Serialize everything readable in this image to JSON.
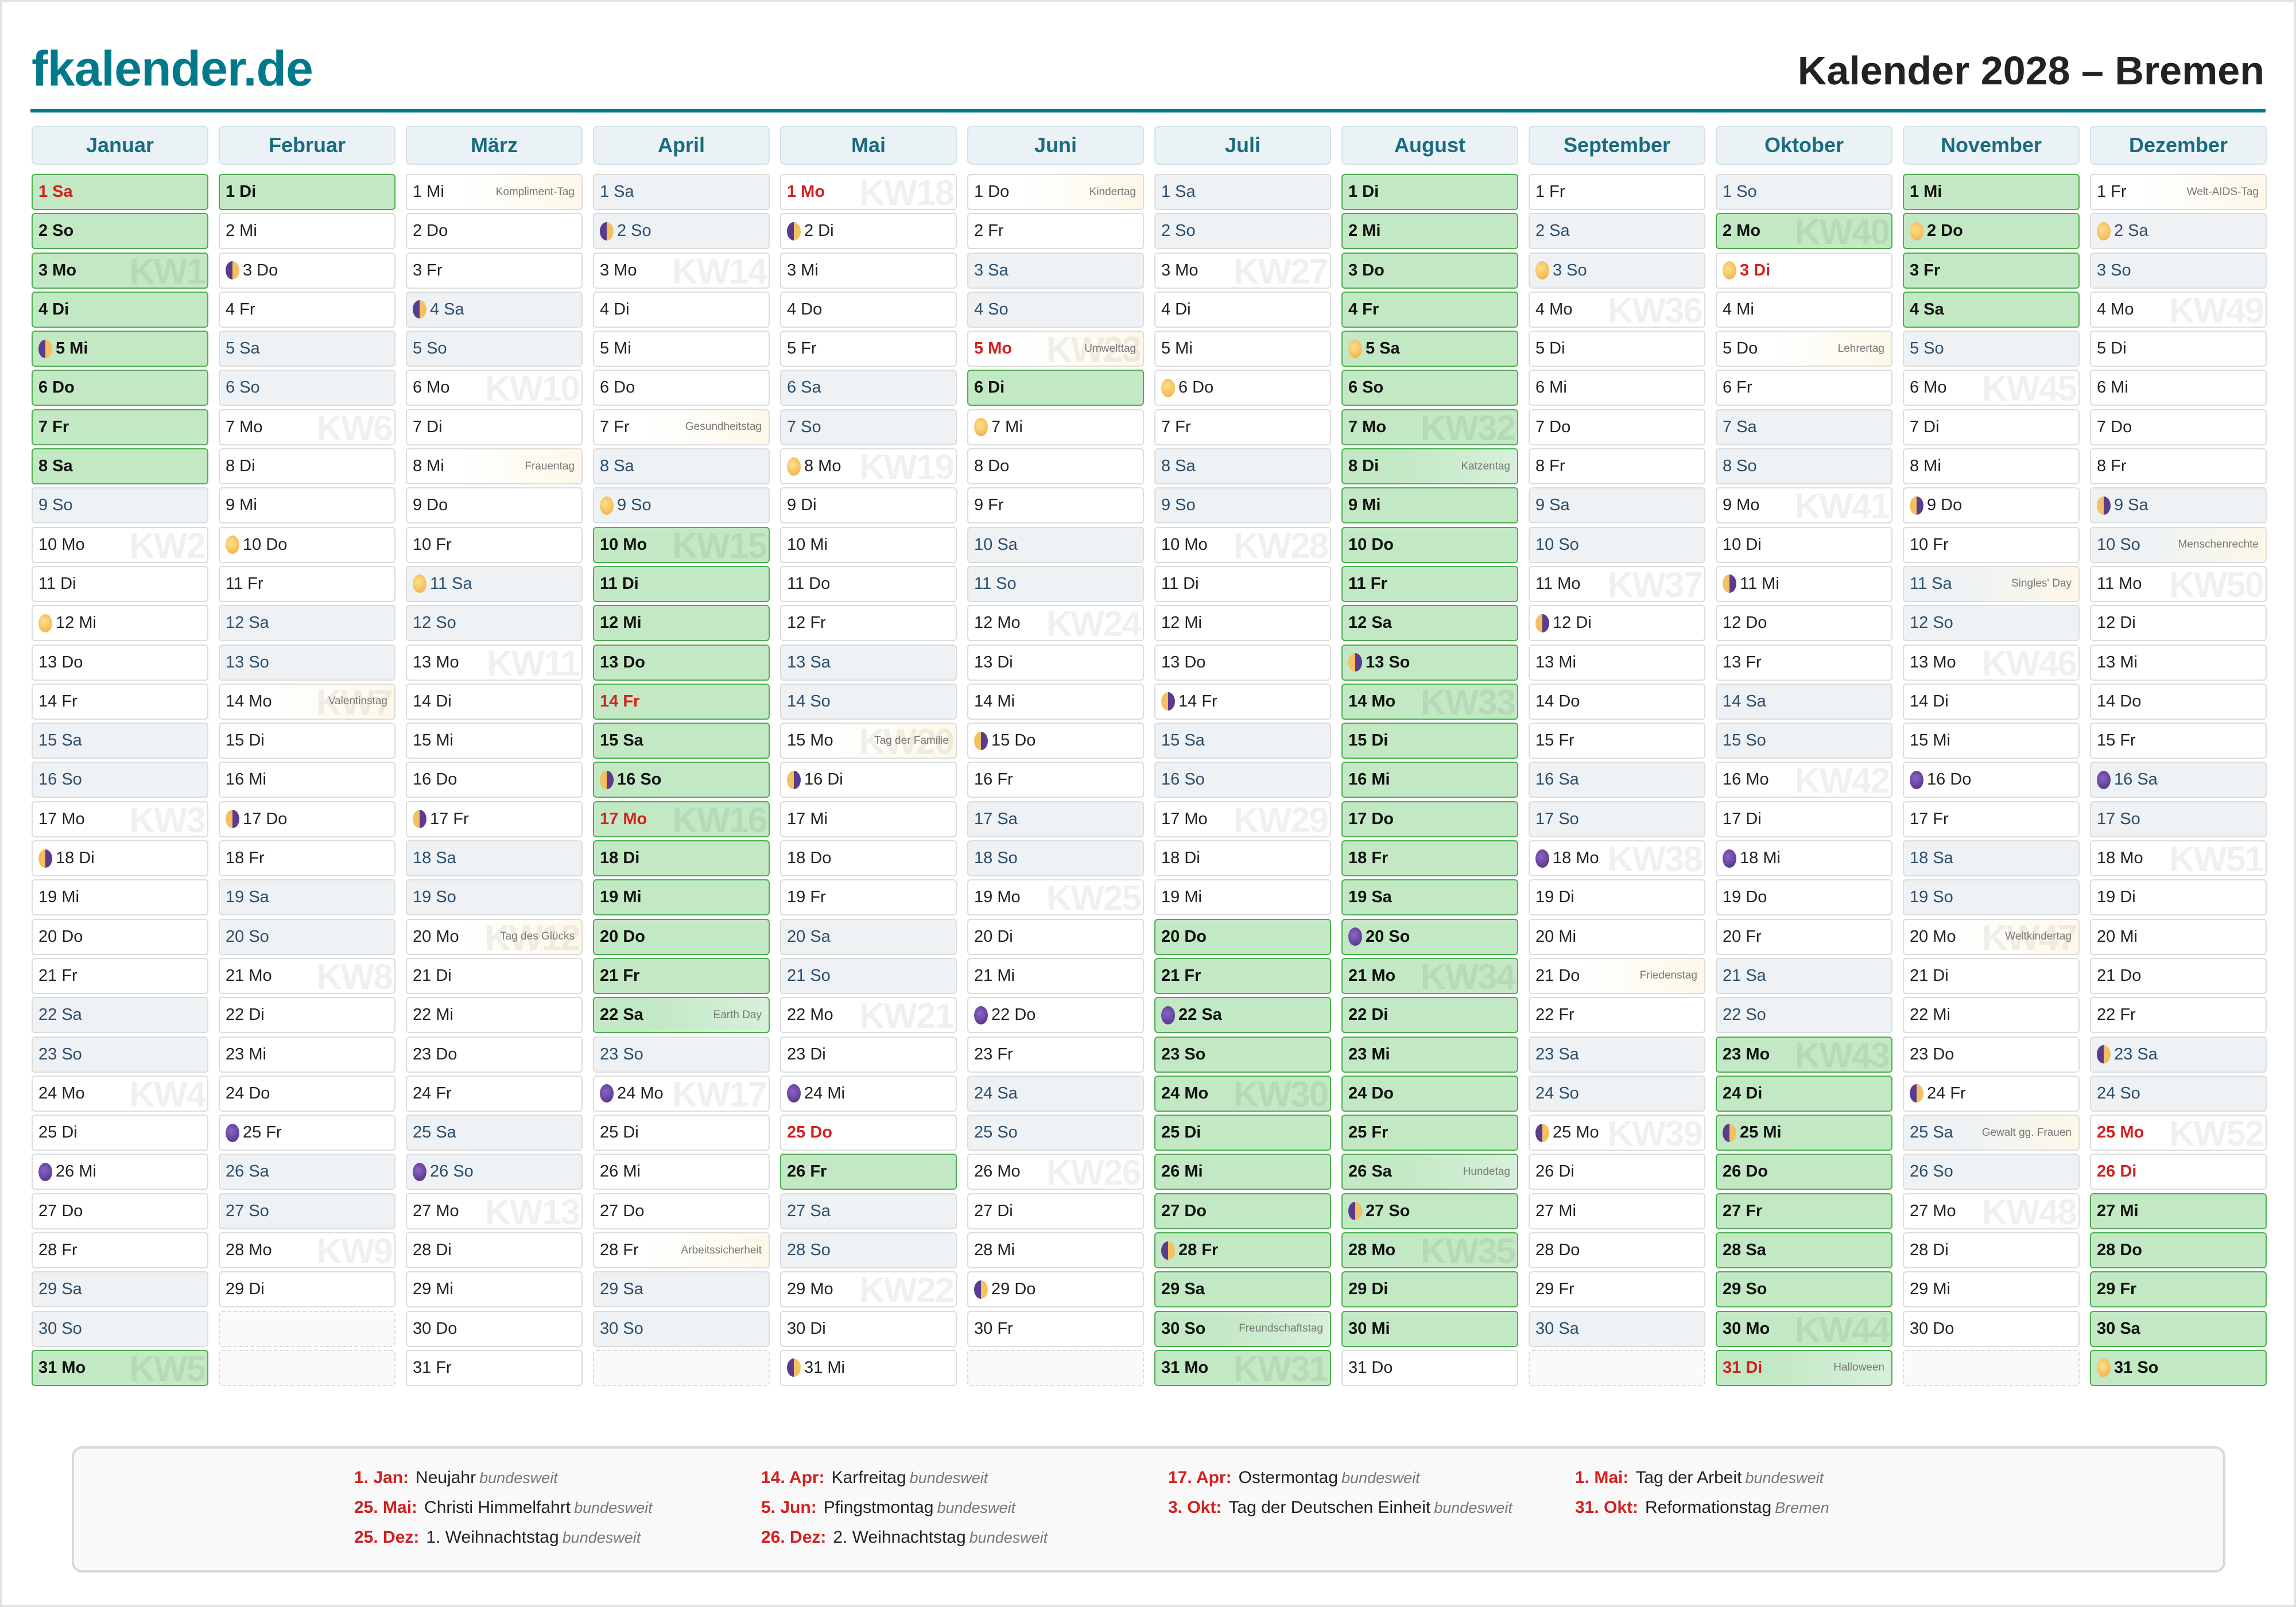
{
  "header": {
    "brand": "fkalender.de",
    "title": "Kalender 2028 – Bremen"
  },
  "colors": {
    "brand": "#007a8a",
    "school_holiday": "#c2e8c4",
    "holiday_text": "#d32020",
    "weekend": "#eef2f5"
  },
  "months": [
    {
      "name": "Januar",
      "days": [
        "1 Sa",
        "2 So",
        "3 Mo",
        "4 Di",
        "5 Mi",
        "6 Do",
        "7 Fr",
        "8 Sa",
        "9 So",
        "10 Mo",
        "11 Di",
        "12 Mi",
        "13 Do",
        "14 Fr",
        "15 Sa",
        "16 So",
        "17 Mo",
        "18 Di",
        "19 Mi",
        "20 Do",
        "21 Fr",
        "22 Sa",
        "23 So",
        "24 Mo",
        "25 Di",
        "26 Mi",
        "27 Do",
        "28 Fr",
        "29 Sa",
        "30 So",
        "31 Mo"
      ],
      "school_holidays": [
        1,
        2,
        3,
        4,
        5,
        6,
        7,
        8,
        31
      ],
      "holidays": [
        1
      ],
      "moons": {
        "5": "first-quarter",
        "12": "full",
        "18": "last-quarter",
        "26": "new"
      },
      "events": {},
      "kw": {
        "3": "KW1",
        "10": "KW2",
        "17": "KW3",
        "24": "KW4",
        "31": "KW5"
      }
    },
    {
      "name": "Februar",
      "days": [
        "1 Di",
        "2 Mi",
        "3 Do",
        "4 Fr",
        "5 Sa",
        "6 So",
        "7 Mo",
        "8 Di",
        "9 Mi",
        "10 Do",
        "11 Fr",
        "12 Sa",
        "13 So",
        "14 Mo",
        "15 Di",
        "16 Mi",
        "17 Do",
        "18 Fr",
        "19 Sa",
        "20 So",
        "21 Mo",
        "22 Di",
        "23 Mi",
        "24 Do",
        "25 Fr",
        "26 Sa",
        "27 So",
        "28 Mo",
        "29 Di"
      ],
      "school_holidays": [
        1
      ],
      "holidays": [],
      "moons": {
        "3": "first-quarter",
        "10": "full",
        "17": "last-quarter",
        "25": "new"
      },
      "events": {
        "14": "Valentinstag"
      },
      "kw": {
        "7": "KW6",
        "14": "KW7",
        "21": "KW8",
        "28": "KW9"
      }
    },
    {
      "name": "März",
      "days": [
        "1 Mi",
        "2 Do",
        "3 Fr",
        "4 Sa",
        "5 So",
        "6 Mo",
        "7 Di",
        "8 Mi",
        "9 Do",
        "10 Fr",
        "11 Sa",
        "12 So",
        "13 Mo",
        "14 Di",
        "15 Mi",
        "16 Do",
        "17 Fr",
        "18 Sa",
        "19 So",
        "20 Mo",
        "21 Di",
        "22 Mi",
        "23 Do",
        "24 Fr",
        "25 Sa",
        "26 So",
        "27 Mo",
        "28 Di",
        "29 Mi",
        "30 Do",
        "31 Fr"
      ],
      "school_holidays": [],
      "holidays": [],
      "moons": {
        "4": "first-quarter",
        "11": "full",
        "17": "last-quarter",
        "26": "new"
      },
      "events": {
        "1": "Kompliment-Tag",
        "8": "Frauentag",
        "20": "Tag des Glücks"
      },
      "kw": {
        "6": "KW10",
        "13": "KW11",
        "20": "KW12",
        "27": "KW13"
      }
    },
    {
      "name": "April",
      "days": [
        "1 Sa",
        "2 So",
        "3 Mo",
        "4 Di",
        "5 Mi",
        "6 Do",
        "7 Fr",
        "8 Sa",
        "9 So",
        "10 Mo",
        "11 Di",
        "12 Mi",
        "13 Do",
        "14 Fr",
        "15 Sa",
        "16 So",
        "17 Mo",
        "18 Di",
        "19 Mi",
        "20 Do",
        "21 Fr",
        "22 Sa",
        "23 So",
        "24 Mo",
        "25 Di",
        "26 Mi",
        "27 Do",
        "28 Fr",
        "29 Sa",
        "30 So"
      ],
      "school_holidays": [
        10,
        11,
        12,
        13,
        14,
        15,
        16,
        17,
        18,
        19,
        20,
        21,
        22
      ],
      "holidays": [
        14,
        17
      ],
      "moons": {
        "2": "first-quarter",
        "9": "full",
        "16": "last-quarter",
        "24": "new"
      },
      "events": {
        "7": "Gesundheitstag",
        "22": "Earth Day",
        "28": "Arbeitssicherheit"
      },
      "kw": {
        "3": "KW14",
        "10": "KW15",
        "17": "KW16",
        "24": "KW17"
      }
    },
    {
      "name": "Mai",
      "days": [
        "1 Mo",
        "2 Di",
        "3 Mi",
        "4 Do",
        "5 Fr",
        "6 Sa",
        "7 So",
        "8 Mo",
        "9 Di",
        "10 Mi",
        "11 Do",
        "12 Fr",
        "13 Sa",
        "14 So",
        "15 Mo",
        "16 Di",
        "17 Mi",
        "18 Do",
        "19 Fr",
        "20 Sa",
        "21 So",
        "22 Mo",
        "23 Di",
        "24 Mi",
        "25 Do",
        "26 Fr",
        "27 Sa",
        "28 So",
        "29 Mo",
        "30 Di",
        "31 Mi"
      ],
      "school_holidays": [
        26
      ],
      "holidays": [
        1,
        25
      ],
      "moons": {
        "2": "first-quarter",
        "8": "full",
        "16": "last-quarter",
        "24": "new",
        "31": "first-quarter"
      },
      "events": {
        "15": "Tag der Familie"
      },
      "kw": {
        "1": "KW18",
        "8": "KW19",
        "15": "KW20",
        "22": "KW21",
        "29": "KW22"
      }
    },
    {
      "name": "Juni",
      "days": [
        "1 Do",
        "2 Fr",
        "3 Sa",
        "4 So",
        "5 Mo",
        "6 Di",
        "7 Mi",
        "8 Do",
        "9 Fr",
        "10 Sa",
        "11 So",
        "12 Mo",
        "13 Di",
        "14 Mi",
        "15 Do",
        "16 Fr",
        "17 Sa",
        "18 So",
        "19 Mo",
        "20 Di",
        "21 Mi",
        "22 Do",
        "23 Fr",
        "24 Sa",
        "25 So",
        "26 Mo",
        "27 Di",
        "28 Mi",
        "29 Do",
        "30 Fr"
      ],
      "school_holidays": [
        6
      ],
      "holidays": [
        5
      ],
      "moons": {
        "7": "full",
        "15": "last-quarter",
        "22": "new",
        "29": "first-quarter"
      },
      "events": {
        "1": "Kindertag",
        "5": "Umwelttag"
      },
      "kw": {
        "5": "KW23",
        "12": "KW24",
        "19": "KW25",
        "26": "KW26"
      }
    },
    {
      "name": "Juli",
      "days": [
        "1 Sa",
        "2 So",
        "3 Mo",
        "4 Di",
        "5 Mi",
        "6 Do",
        "7 Fr",
        "8 Sa",
        "9 So",
        "10 Mo",
        "11 Di",
        "12 Mi",
        "13 Do",
        "14 Fr",
        "15 Sa",
        "16 So",
        "17 Mo",
        "18 Di",
        "19 Mi",
        "20 Do",
        "21 Fr",
        "22 Sa",
        "23 So",
        "24 Mo",
        "25 Di",
        "26 Mi",
        "27 Do",
        "28 Fr",
        "29 Sa",
        "30 So",
        "31 Mo"
      ],
      "school_holidays": [
        20,
        21,
        22,
        23,
        24,
        25,
        26,
        27,
        28,
        29,
        30,
        31
      ],
      "holidays": [],
      "moons": {
        "6": "full",
        "14": "last-quarter",
        "22": "new",
        "28": "first-quarter"
      },
      "events": {
        "30": "Freundschaftstag"
      },
      "kw": {
        "3": "KW27",
        "10": "KW28",
        "17": "KW29",
        "24": "KW30",
        "31": "KW31"
      }
    },
    {
      "name": "August",
      "days": [
        "1 Di",
        "2 Mi",
        "3 Do",
        "4 Fr",
        "5 Sa",
        "6 So",
        "7 Mo",
        "8 Di",
        "9 Mi",
        "10 Do",
        "11 Fr",
        "12 Sa",
        "13 So",
        "14 Mo",
        "15 Di",
        "16 Mi",
        "17 Do",
        "18 Fr",
        "19 Sa",
        "20 So",
        "21 Mo",
        "22 Di",
        "23 Mi",
        "24 Do",
        "25 Fr",
        "26 Sa",
        "27 So",
        "28 Mo",
        "29 Di",
        "30 Mi",
        "31 Do"
      ],
      "school_holidays": [
        1,
        2,
        3,
        4,
        5,
        6,
        7,
        8,
        9,
        10,
        11,
        12,
        13,
        14,
        15,
        16,
        17,
        18,
        19,
        20,
        21,
        22,
        23,
        24,
        25,
        26,
        27,
        28,
        29,
        30
      ],
      "holidays": [],
      "moons": {
        "5": "full",
        "13": "last-quarter",
        "20": "new",
        "27": "first-quarter"
      },
      "events": {
        "8": "Katzentag",
        "26": "Hundetag"
      },
      "kw": {
        "7": "KW32",
        "14": "KW33",
        "21": "KW34",
        "28": "KW35"
      }
    },
    {
      "name": "September",
      "days": [
        "1 Fr",
        "2 Sa",
        "3 So",
        "4 Mo",
        "5 Di",
        "6 Mi",
        "7 Do",
        "8 Fr",
        "9 Sa",
        "10 So",
        "11 Mo",
        "12 Di",
        "13 Mi",
        "14 Do",
        "15 Fr",
        "16 Sa",
        "17 So",
        "18 Mo",
        "19 Di",
        "20 Mi",
        "21 Do",
        "22 Fr",
        "23 Sa",
        "24 So",
        "25 Mo",
        "26 Di",
        "27 Mi",
        "28 Do",
        "29 Fr",
        "30 Sa"
      ],
      "school_holidays": [],
      "holidays": [],
      "moons": {
        "3": "full",
        "12": "last-quarter",
        "18": "new",
        "25": "first-quarter"
      },
      "events": {
        "21": "Friedenstag"
      },
      "kw": {
        "4": "KW36",
        "11": "KW37",
        "18": "KW38",
        "25": "KW39"
      }
    },
    {
      "name": "Oktober",
      "days": [
        "1 So",
        "2 Mo",
        "3 Di",
        "4 Mi",
        "5 Do",
        "6 Fr",
        "7 Sa",
        "8 So",
        "9 Mo",
        "10 Di",
        "11 Mi",
        "12 Do",
        "13 Fr",
        "14 Sa",
        "15 So",
        "16 Mo",
        "17 Di",
        "18 Mi",
        "19 Do",
        "20 Fr",
        "21 Sa",
        "22 So",
        "23 Mo",
        "24 Di",
        "25 Mi",
        "26 Do",
        "27 Fr",
        "28 Sa",
        "29 So",
        "30 Mo",
        "31 Di"
      ],
      "school_holidays": [
        2,
        23,
        24,
        25,
        26,
        27,
        28,
        29,
        30,
        31
      ],
      "holidays": [
        3,
        31
      ],
      "moons": {
        "3": "full",
        "11": "last-quarter",
        "18": "new",
        "25": "first-quarter"
      },
      "events": {
        "5": "Lehrertag",
        "31": "Halloween"
      },
      "kw": {
        "2": "KW40",
        "9": "KW41",
        "16": "KW42",
        "23": "KW43",
        "30": "KW44"
      }
    },
    {
      "name": "November",
      "days": [
        "1 Mi",
        "2 Do",
        "3 Fr",
        "4 Sa",
        "5 So",
        "6 Mo",
        "7 Di",
        "8 Mi",
        "9 Do",
        "10 Fr",
        "11 Sa",
        "12 So",
        "13 Mo",
        "14 Di",
        "15 Mi",
        "16 Do",
        "17 Fr",
        "18 Sa",
        "19 So",
        "20 Mo",
        "21 Di",
        "22 Mi",
        "23 Do",
        "24 Fr",
        "25 Sa",
        "26 So",
        "27 Mo",
        "28 Di",
        "29 Mi",
        "30 Do"
      ],
      "school_holidays": [
        1,
        2,
        3,
        4
      ],
      "holidays": [],
      "moons": {
        "2": "full",
        "9": "last-quarter",
        "16": "new",
        "24": "first-quarter"
      },
      "events": {
        "11": "Singles' Day",
        "20": "Weltkindertag",
        "25": "Gewalt gg. Frauen"
      },
      "kw": {
        "6": "KW45",
        "13": "KW46",
        "20": "KW47",
        "27": "KW48"
      }
    },
    {
      "name": "Dezember",
      "days": [
        "1 Fr",
        "2 Sa",
        "3 So",
        "4 Mo",
        "5 Di",
        "6 Mi",
        "7 Do",
        "8 Fr",
        "9 Sa",
        "10 So",
        "11 Mo",
        "12 Di",
        "13 Mi",
        "14 Do",
        "15 Fr",
        "16 Sa",
        "17 So",
        "18 Mo",
        "19 Di",
        "20 Mi",
        "21 Do",
        "22 Fr",
        "23 Sa",
        "24 So",
        "25 Mo",
        "26 Di",
        "27 Mi",
        "28 Do",
        "29 Fr",
        "30 Sa",
        "31 So"
      ],
      "school_holidays": [
        27,
        28,
        29,
        30,
        31
      ],
      "holidays": [
        25,
        26
      ],
      "moons": {
        "2": "full",
        "9": "last-quarter",
        "16": "new",
        "23": "first-quarter",
        "31": "full"
      },
      "events": {
        "1": "Welt-AIDS-Tag",
        "10": "Menschenrechte"
      },
      "kw": {
        "4": "KW49",
        "11": "KW50",
        "18": "KW51",
        "25": "KW52"
      }
    }
  ],
  "legend": [
    {
      "date": "1. Jan:",
      "name": "Neujahr",
      "region": "bundesweit"
    },
    {
      "date": "14. Apr:",
      "name": "Karfreitag",
      "region": "bundesweit"
    },
    {
      "date": "17. Apr:",
      "name": "Ostermontag",
      "region": "bundesweit"
    },
    {
      "date": "1. Mai:",
      "name": "Tag der Arbeit",
      "region": "bundesweit"
    },
    {
      "date": "25. Mai:",
      "name": "Christi Himmelfahrt",
      "region": "bundesweit"
    },
    {
      "date": "5. Jun:",
      "name": "Pfingstmontag",
      "region": "bundesweit"
    },
    {
      "date": "3. Okt:",
      "name": "Tag der Deutschen Einheit",
      "region": "bundesweit"
    },
    {
      "date": "31. Okt:",
      "name": "Reformationstag",
      "region": "Bremen"
    },
    {
      "date": "25. Dez:",
      "name": "1. Weihnachtstag",
      "region": "bundesweit"
    },
    {
      "date": "26. Dez:",
      "name": "2. Weihnachtstag",
      "region": "bundesweit"
    }
  ]
}
